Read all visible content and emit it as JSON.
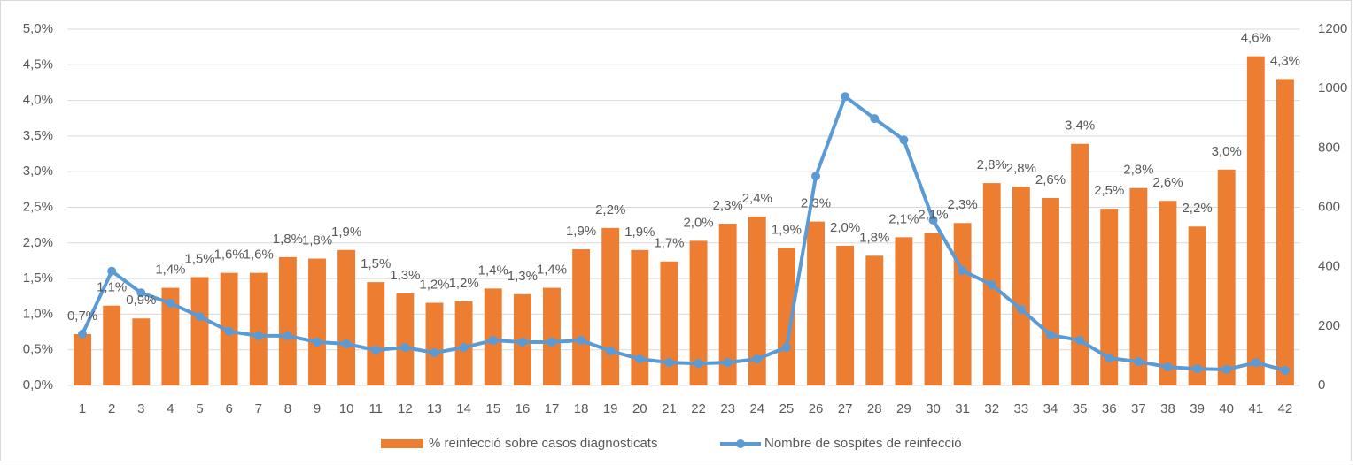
{
  "chart_data": {
    "type": "bar-line",
    "categories": [
      "1",
      "2",
      "3",
      "4",
      "5",
      "6",
      "7",
      "8",
      "9",
      "10",
      "11",
      "12",
      "13",
      "14",
      "15",
      "16",
      "17",
      "18",
      "19",
      "20",
      "21",
      "22",
      "23",
      "24",
      "25",
      "26",
      "27",
      "28",
      "29",
      "30",
      "31",
      "32",
      "33",
      "34",
      "35",
      "36",
      "37",
      "38",
      "39",
      "40",
      "41",
      "42"
    ],
    "series": [
      {
        "name": "% reinfecció sobre casos diagnosticats",
        "type": "bar",
        "color": "#ed7d31",
        "values": [
          0.72,
          1.12,
          0.94,
          1.37,
          1.52,
          1.58,
          1.58,
          1.8,
          1.78,
          1.9,
          1.45,
          1.29,
          1.16,
          1.18,
          1.36,
          1.28,
          1.37,
          1.91,
          2.21,
          1.9,
          1.74,
          2.03,
          2.27,
          2.37,
          1.93,
          2.3,
          1.96,
          1.82,
          2.08,
          2.14,
          2.28,
          2.84,
          2.79,
          2.63,
          3.39,
          2.48,
          2.77,
          2.59,
          2.23,
          3.03,
          4.62,
          4.3
        ],
        "value_labels": [
          "0,7%",
          "1,1%",
          "0,9%",
          "1,4%",
          "1,5%",
          "1,6%",
          "1,6%",
          "1,8%",
          "1,8%",
          "1,9%",
          "1,5%",
          "1,3%",
          "1,2%",
          "1,2%",
          "1,4%",
          "1,3%",
          "1,4%",
          "1,9%",
          "2,2%",
          "1,9%",
          "1,7%",
          "2,0%",
          "2,3%",
          "2,4%",
          "1,9%",
          "2,3%",
          "2,0%",
          "1,8%",
          "2,1%",
          "2,1%",
          "2,3%",
          "2,8%",
          "2,8%",
          "2,6%",
          "3,4%",
          "2,5%",
          "2,8%",
          "2,6%",
          "2,2%",
          "3,0%",
          "4,6%",
          "4,3%"
        ]
      },
      {
        "name": "Nombre de sospites de reinfecció",
        "type": "line",
        "axis": "y2",
        "color": "#5b9bd5",
        "values": [
          173,
          385,
          312,
          277,
          232,
          182,
          167,
          167,
          146,
          140,
          119,
          128,
          110,
          128,
          152,
          146,
          146,
          152,
          116,
          89,
          77,
          74,
          77,
          89,
          128,
          705,
          973,
          899,
          827,
          557,
          387,
          339,
          256,
          170,
          152,
          92,
          80,
          62,
          56,
          54,
          77,
          51
        ]
      }
    ],
    "ylim": [
      0,
      5
    ],
    "yticks": [
      {
        "value": 0,
        "label": "0,0%"
      },
      {
        "value": 0.5,
        "label": "0,5%"
      },
      {
        "value": 1,
        "label": "1,0%"
      },
      {
        "value": 1.5,
        "label": "1,5%"
      },
      {
        "value": 2,
        "label": "2,0%"
      },
      {
        "value": 2.5,
        "label": "2,5%"
      },
      {
        "value": 3,
        "label": "3,0%"
      },
      {
        "value": 3.5,
        "label": "3,5%"
      },
      {
        "value": 4,
        "label": "4,0%"
      },
      {
        "value": 4.5,
        "label": "4,5%"
      },
      {
        "value": 5,
        "label": "5,0%"
      }
    ],
    "y2lim": [
      0,
      1200
    ],
    "y2ticks": [
      0,
      200,
      400,
      600,
      800,
      1000,
      1200
    ],
    "grid": true,
    "legend": "bottom"
  }
}
